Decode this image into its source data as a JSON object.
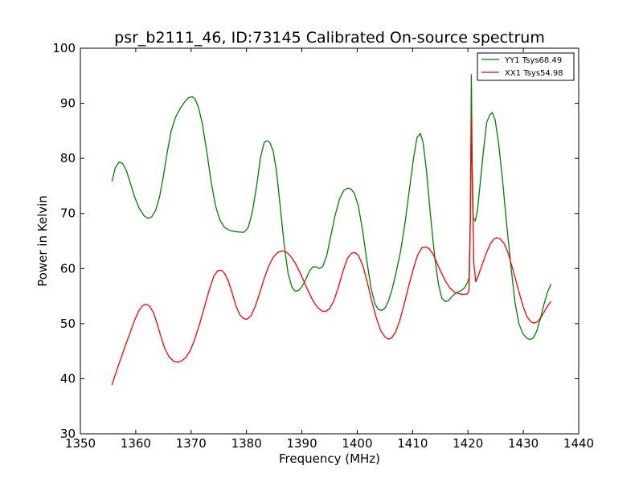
{
  "chart_data": {
    "type": "line",
    "title": "psr_b2111_46, ID:73145 Calibrated On-source spectrum",
    "xlabel": "Frequency (MHz)",
    "ylabel": "Power in Kelvin",
    "xlim": [
      1350,
      1440
    ],
    "ylim": [
      30,
      100
    ],
    "x_ticks": [
      "1350",
      "1360",
      "1370",
      "1380",
      "1390",
      "1400",
      "1410",
      "1420",
      "1430",
      "1440"
    ],
    "y_ticks": [
      "30",
      "40",
      "50",
      "60",
      "70",
      "80",
      "90",
      "100"
    ],
    "grid": false,
    "legend_position": "top-right",
    "series": [
      {
        "name": "YY1 Tsys68.49",
        "color": "#008000",
        "points": [
          [
            1355.7,
            75.8
          ],
          [
            1356.3,
            78.3
          ],
          [
            1357.0,
            79.3
          ],
          [
            1357.6,
            79.1
          ],
          [
            1358.3,
            77.8
          ],
          [
            1359.0,
            75.6
          ],
          [
            1359.8,
            73.0
          ],
          [
            1360.6,
            71.0
          ],
          [
            1361.5,
            69.6
          ],
          [
            1362.2,
            69.1
          ],
          [
            1362.9,
            69.4
          ],
          [
            1363.6,
            70.6
          ],
          [
            1364.3,
            73.0
          ],
          [
            1365.0,
            76.8
          ],
          [
            1365.7,
            81.2
          ],
          [
            1366.4,
            85.0
          ],
          [
            1367.2,
            87.5
          ],
          [
            1368.0,
            89.0
          ],
          [
            1368.8,
            90.2
          ],
          [
            1369.5,
            91.0
          ],
          [
            1370.2,
            91.2
          ],
          [
            1370.7,
            90.8
          ],
          [
            1371.3,
            89.4
          ],
          [
            1372.0,
            86.4
          ],
          [
            1372.8,
            81.4
          ],
          [
            1373.6,
            75.8
          ],
          [
            1374.4,
            71.4
          ],
          [
            1375.2,
            68.8
          ],
          [
            1376.0,
            67.5
          ],
          [
            1377.0,
            66.9
          ],
          [
            1378.0,
            66.7
          ],
          [
            1379.0,
            66.6
          ],
          [
            1379.6,
            66.6
          ],
          [
            1380.3,
            67.4
          ],
          [
            1381.0,
            70.0
          ],
          [
            1381.8,
            74.8
          ],
          [
            1382.5,
            80.0
          ],
          [
            1383.2,
            82.9
          ],
          [
            1383.7,
            83.2
          ],
          [
            1384.2,
            82.9
          ],
          [
            1384.8,
            81.4
          ],
          [
            1385.4,
            77.8
          ],
          [
            1386.1,
            71.2
          ],
          [
            1386.8,
            64.4
          ],
          [
            1387.5,
            59.2
          ],
          [
            1388.2,
            56.6
          ],
          [
            1388.8,
            55.9
          ],
          [
            1389.4,
            56.0
          ],
          [
            1390.0,
            56.7
          ],
          [
            1390.7,
            58.0
          ],
          [
            1391.4,
            59.6
          ],
          [
            1392.0,
            60.3
          ],
          [
            1392.6,
            60.3
          ],
          [
            1393.2,
            60.0
          ],
          [
            1393.8,
            60.4
          ],
          [
            1394.5,
            62.4
          ],
          [
            1395.2,
            65.8
          ],
          [
            1396.0,
            69.6
          ],
          [
            1396.8,
            72.6
          ],
          [
            1397.6,
            74.2
          ],
          [
            1398.3,
            74.6
          ],
          [
            1398.9,
            74.4
          ],
          [
            1399.5,
            73.6
          ],
          [
            1400.2,
            71.4
          ],
          [
            1401.0,
            66.8
          ],
          [
            1401.8,
            61.0
          ],
          [
            1402.5,
            56.4
          ],
          [
            1403.2,
            53.6
          ],
          [
            1403.8,
            52.6
          ],
          [
            1404.4,
            52.4
          ],
          [
            1405.0,
            52.8
          ],
          [
            1405.6,
            54.0
          ],
          [
            1406.3,
            56.2
          ],
          [
            1407.0,
            59.2
          ],
          [
            1407.8,
            63.0
          ],
          [
            1408.6,
            68.0
          ],
          [
            1409.4,
            74.2
          ],
          [
            1410.2,
            80.2
          ],
          [
            1410.8,
            83.8
          ],
          [
            1411.4,
            84.5
          ],
          [
            1411.9,
            82.9
          ],
          [
            1412.5,
            77.8
          ],
          [
            1413.2,
            70.0
          ],
          [
            1414.0,
            62.0
          ],
          [
            1414.7,
            57.0
          ],
          [
            1415.3,
            54.6
          ],
          [
            1415.9,
            54.0
          ],
          [
            1416.5,
            54.2
          ],
          [
            1417.2,
            55.0
          ],
          [
            1417.9,
            55.6
          ],
          [
            1418.6,
            55.9
          ],
          [
            1419.3,
            56.4
          ],
          [
            1419.9,
            57.4
          ],
          [
            1420.2,
            58.4
          ],
          [
            1420.45,
            70.0
          ],
          [
            1420.6,
            95.2
          ],
          [
            1420.75,
            80.0
          ],
          [
            1420.95,
            69.2
          ],
          [
            1421.3,
            68.6
          ],
          [
            1421.7,
            70.4
          ],
          [
            1422.2,
            75.4
          ],
          [
            1422.8,
            81.4
          ],
          [
            1423.4,
            86.6
          ],
          [
            1424.0,
            88.0
          ],
          [
            1424.4,
            88.3
          ],
          [
            1424.9,
            87.0
          ],
          [
            1425.5,
            83.0
          ],
          [
            1426.2,
            76.6
          ],
          [
            1427.0,
            68.0
          ],
          [
            1427.8,
            60.0
          ],
          [
            1428.5,
            53.8
          ],
          [
            1429.2,
            50.0
          ],
          [
            1429.9,
            48.2
          ],
          [
            1430.6,
            47.4
          ],
          [
            1431.2,
            47.1
          ],
          [
            1431.8,
            47.4
          ],
          [
            1432.4,
            48.6
          ],
          [
            1433.0,
            50.6
          ],
          [
            1433.7,
            53.4
          ],
          [
            1434.4,
            55.8
          ],
          [
            1435.0,
            57.2
          ]
        ]
      },
      {
        "name": "XX1 Tsys54.98",
        "color": "#ff0000",
        "points": [
          [
            1355.7,
            38.9
          ],
          [
            1356.2,
            40.4
          ],
          [
            1356.8,
            42.2
          ],
          [
            1357.5,
            44.2
          ],
          [
            1358.2,
            46.2
          ],
          [
            1359.0,
            48.4
          ],
          [
            1359.8,
            50.6
          ],
          [
            1360.6,
            52.4
          ],
          [
            1361.3,
            53.3
          ],
          [
            1361.9,
            53.5
          ],
          [
            1362.5,
            53.2
          ],
          [
            1363.2,
            52.0
          ],
          [
            1363.8,
            50.2
          ],
          [
            1364.5,
            47.8
          ],
          [
            1365.2,
            45.6
          ],
          [
            1366.0,
            44.0
          ],
          [
            1366.8,
            43.2
          ],
          [
            1367.5,
            43.0
          ],
          [
            1368.2,
            43.2
          ],
          [
            1369.0,
            43.8
          ],
          [
            1369.8,
            45.0
          ],
          [
            1370.6,
            47.0
          ],
          [
            1371.5,
            49.8
          ],
          [
            1372.4,
            53.0
          ],
          [
            1373.3,
            56.2
          ],
          [
            1374.1,
            58.6
          ],
          [
            1374.8,
            59.6
          ],
          [
            1375.4,
            59.7
          ],
          [
            1376.0,
            59.2
          ],
          [
            1376.7,
            57.8
          ],
          [
            1377.4,
            55.6
          ],
          [
            1378.1,
            53.2
          ],
          [
            1378.8,
            51.6
          ],
          [
            1379.5,
            50.9
          ],
          [
            1380.1,
            50.8
          ],
          [
            1380.8,
            51.4
          ],
          [
            1381.6,
            53.2
          ],
          [
            1382.4,
            55.6
          ],
          [
            1383.2,
            58.2
          ],
          [
            1384.0,
            60.4
          ],
          [
            1384.8,
            62.0
          ],
          [
            1385.6,
            62.9
          ],
          [
            1386.4,
            63.2
          ],
          [
            1387.2,
            63.0
          ],
          [
            1388.0,
            62.2
          ],
          [
            1388.8,
            61.0
          ],
          [
            1389.6,
            59.4
          ],
          [
            1390.4,
            57.6
          ],
          [
            1391.2,
            55.8
          ],
          [
            1392.0,
            54.2
          ],
          [
            1392.8,
            53.0
          ],
          [
            1393.6,
            52.3
          ],
          [
            1394.3,
            52.2
          ],
          [
            1395.0,
            52.7
          ],
          [
            1395.8,
            54.2
          ],
          [
            1396.6,
            56.6
          ],
          [
            1397.4,
            59.4
          ],
          [
            1398.2,
            61.8
          ],
          [
            1399.0,
            62.8
          ],
          [
            1399.6,
            62.9
          ],
          [
            1400.2,
            62.4
          ],
          [
            1401.0,
            60.6
          ],
          [
            1401.8,
            57.6
          ],
          [
            1402.6,
            54.2
          ],
          [
            1403.4,
            51.2
          ],
          [
            1404.2,
            48.8
          ],
          [
            1405.0,
            47.6
          ],
          [
            1405.6,
            47.2
          ],
          [
            1406.2,
            47.4
          ],
          [
            1406.9,
            48.4
          ],
          [
            1407.7,
            50.6
          ],
          [
            1408.5,
            53.6
          ],
          [
            1409.3,
            56.8
          ],
          [
            1410.1,
            59.8
          ],
          [
            1410.9,
            62.4
          ],
          [
            1411.7,
            63.8
          ],
          [
            1412.4,
            63.9
          ],
          [
            1413.0,
            63.6
          ],
          [
            1413.7,
            62.6
          ],
          [
            1414.4,
            61.0
          ],
          [
            1415.2,
            59.2
          ],
          [
            1416.0,
            57.6
          ],
          [
            1416.8,
            56.4
          ],
          [
            1417.6,
            55.7
          ],
          [
            1418.4,
            55.4
          ],
          [
            1419.2,
            55.3
          ],
          [
            1419.9,
            55.4
          ],
          [
            1420.2,
            56.0
          ],
          [
            1420.45,
            70.0
          ],
          [
            1420.6,
            87.8
          ],
          [
            1420.8,
            75.0
          ],
          [
            1421.05,
            61.0
          ],
          [
            1421.4,
            57.6
          ],
          [
            1421.9,
            58.8
          ],
          [
            1422.6,
            60.8
          ],
          [
            1423.3,
            62.8
          ],
          [
            1424.0,
            64.4
          ],
          [
            1424.6,
            65.3
          ],
          [
            1425.2,
            65.6
          ],
          [
            1425.8,
            65.4
          ],
          [
            1426.5,
            64.6
          ],
          [
            1427.2,
            63.0
          ],
          [
            1427.9,
            60.6
          ],
          [
            1428.6,
            58.0
          ],
          [
            1429.3,
            55.4
          ],
          [
            1430.0,
            53.0
          ],
          [
            1430.7,
            51.2
          ],
          [
            1431.3,
            50.4
          ],
          [
            1431.9,
            50.1
          ],
          [
            1432.5,
            50.3
          ],
          [
            1433.1,
            51.0
          ],
          [
            1433.8,
            52.2
          ],
          [
            1434.5,
            53.4
          ],
          [
            1435.0,
            54.0
          ]
        ]
      }
    ]
  }
}
